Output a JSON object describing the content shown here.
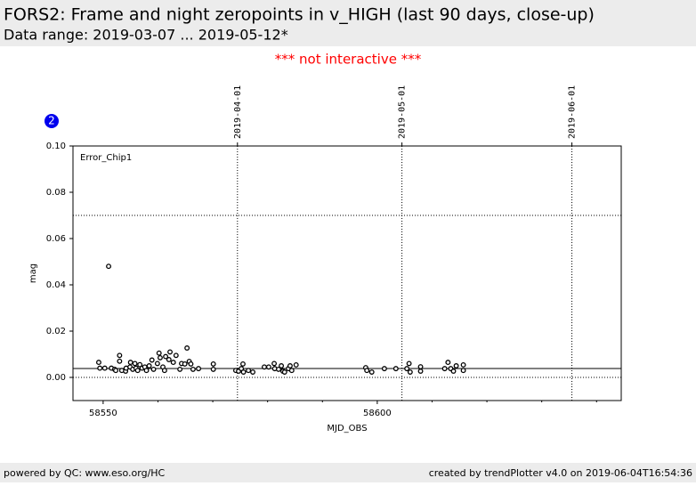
{
  "header": {
    "title": "FORS2: Frame and night zeropoints in v_HIGH (last 90 days, close-up)",
    "subtitle": "Data range: 2019-03-07 ... 2019-05-12*"
  },
  "notice": "*** not interactive ***",
  "badge": "2",
  "footer": {
    "left": "powered by QC: www.eso.org/HC",
    "right": "created by trendPlotter v4.0 on 2019-06-04T16:54:36"
  },
  "chart_data": {
    "type": "scatter",
    "panel_label": "Error_Chip1",
    "xlabel": "MJD_OBS",
    "ylabel": "mag",
    "xlim": [
      58544.5,
      58644.5
    ],
    "ylim": [
      -0.01,
      0.1
    ],
    "xticks": [
      58550,
      58600
    ],
    "x_minor_ticks": [
      58560,
      58570,
      58580,
      58590,
      58610,
      58620,
      58630,
      58640
    ],
    "yticks": [
      {
        "value": 0,
        "label": "0.00"
      },
      {
        "value": 0.02,
        "label": "0.02"
      },
      {
        "value": 0.04,
        "label": "0.04"
      },
      {
        "value": 0.06,
        "label": "0.06"
      },
      {
        "value": 0.08,
        "label": "0.08"
      },
      {
        "value": 0.1,
        "label": "0.10"
      }
    ],
    "top_xticks": [
      {
        "value": 58574.5,
        "label": "2019-04-01"
      },
      {
        "value": 58604.5,
        "label": "2019-05-01"
      },
      {
        "value": 58635.5,
        "label": "2019-06-01"
      }
    ],
    "ref_lines": [
      {
        "value": 0.07,
        "style": "dotted"
      },
      {
        "value": 0.00385,
        "style": "solid"
      },
      {
        "value": 0,
        "style": "dotted"
      }
    ],
    "color": "#000000",
    "x": [
      58549.2,
      58549.4,
      58550.3,
      58551,
      58551.5,
      58552.1,
      58552.3,
      58553,
      58553,
      58553.4,
      58554.1,
      58554.2,
      58554.9,
      58555,
      58555.4,
      58555.8,
      58556,
      58556.3,
      58556.7,
      58557.1,
      58557.6,
      58557.9,
      58558.4,
      58558.9,
      58559.2,
      58559.9,
      58560.2,
      58560.4,
      58560.9,
      58561.2,
      58561.4,
      58562,
      58562.2,
      58562.8,
      58563.3,
      58564,
      58564.3,
      58564.9,
      58565.3,
      58565.7,
      58566,
      58566.4,
      58567.4,
      58570.1,
      58570.1,
      58574.2,
      58574.7,
      58575.2,
      58575.5,
      58575.6,
      58576.5,
      58577.3,
      58579.4,
      58580.2,
      58581.2,
      58581.3,
      58582,
      58582.5,
      58582.8,
      58583.1,
      58583.8,
      58584.1,
      58584.4,
      58585.2,
      58597.9,
      58598.1,
      58599,
      58601.3,
      58603.4,
      58605.4,
      58605.8,
      58606,
      58607.9,
      58607.9,
      58612.3,
      58612.9,
      58613.4,
      58613.9,
      58614.4,
      58615.7,
      58615.7
    ],
    "values": [
      0.0065,
      0.004,
      0.004,
      0.048,
      0.004,
      0.0035,
      0.003,
      0.0095,
      0.007,
      0.003,
      0.0027,
      0.004,
      0.0045,
      0.0065,
      0.0035,
      0.006,
      0.004,
      0.003,
      0.0055,
      0.004,
      0.0045,
      0.003,
      0.005,
      0.0075,
      0.0035,
      0.006,
      0.0105,
      0.0085,
      0.0045,
      0.003,
      0.009,
      0.0077,
      0.011,
      0.0065,
      0.0095,
      0.0035,
      0.006,
      0.0058,
      0.0127,
      0.0069,
      0.0058,
      0.0035,
      0.0038,
      0.0058,
      0.0035,
      0.003,
      0.0027,
      0.0038,
      0.0058,
      0.0023,
      0.003,
      0.0023,
      0.0045,
      0.0045,
      0.006,
      0.0038,
      0.0035,
      0.005,
      0.0027,
      0.0023,
      0.0038,
      0.005,
      0.003,
      0.0054,
      0.0042,
      0.003,
      0.0023,
      0.0038,
      0.0038,
      0.0038,
      0.006,
      0.0023,
      0.0046,
      0.0027,
      0.0038,
      0.0065,
      0.0038,
      0.0027,
      0.005,
      0.0054,
      0.003
    ]
  }
}
